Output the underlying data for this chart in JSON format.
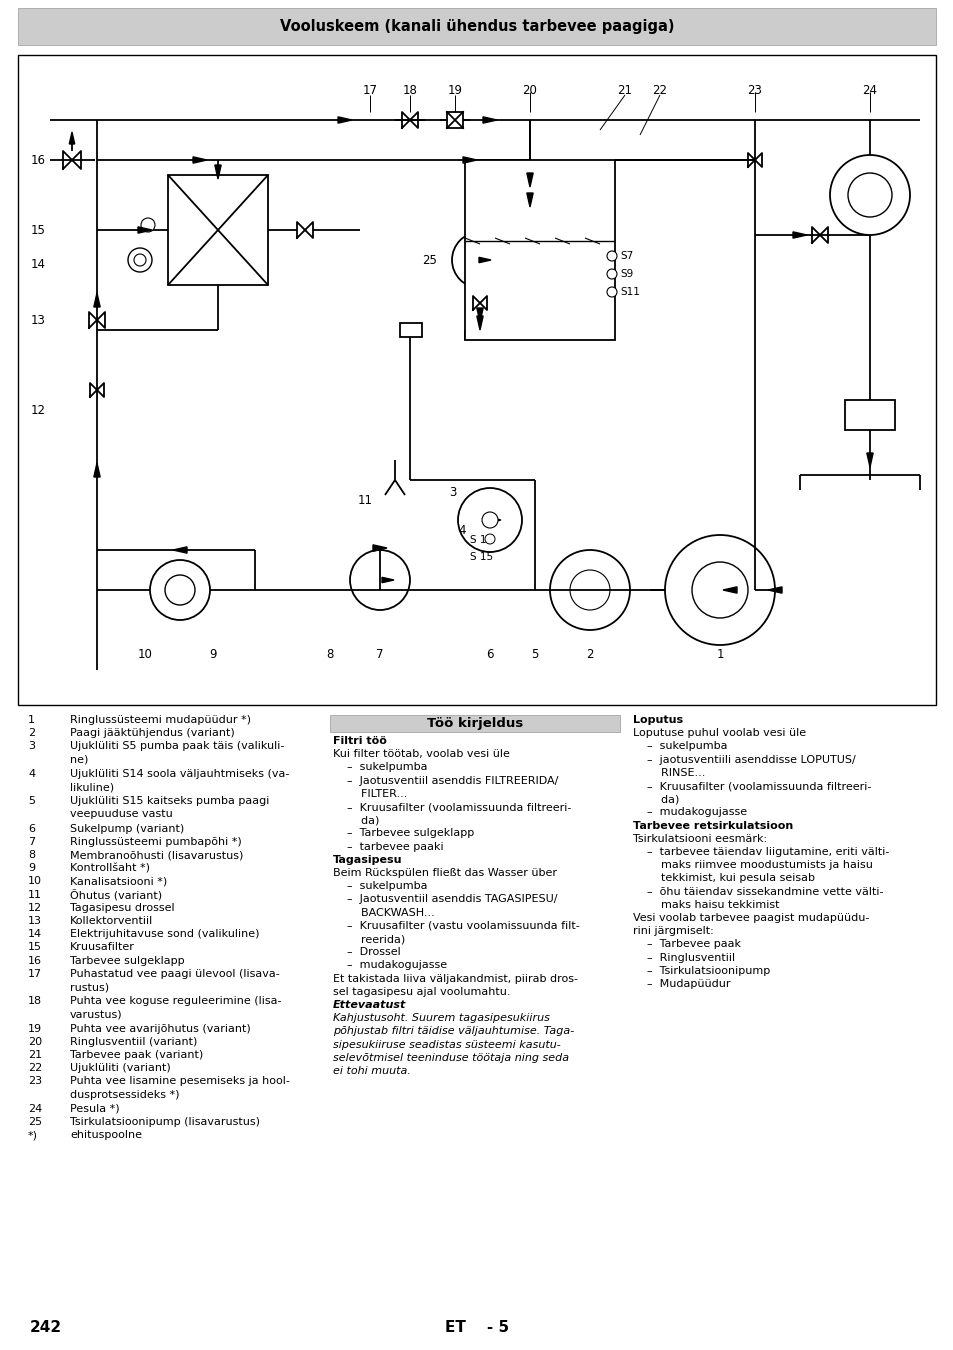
{
  "title": "Vooluskeem (kanali ühendus tarbevee paagiga)",
  "page_number": "242",
  "language_code": "ET    - 5",
  "bg_color": "#ffffff",
  "header_bg": "#cccccc",
  "left_items": [
    [
      "1",
      "Ringlussüsteemi mudapüüdur *)"
    ],
    [
      "2",
      "Paagi jääktühjendus (variant)"
    ],
    [
      "3",
      "Ujuklüliti S5 pumba paak täis (valikuli-\nne)"
    ],
    [
      "4",
      "Ujuklüliti S14 soola väljauhtmiseks (va-\nlikuline)"
    ],
    [
      "5",
      "Ujuklüliti S15 kaitseks pumba paagi\nveepuuduse vastu"
    ],
    [
      "6",
      "Sukelpump (variant)"
    ],
    [
      "7",
      "Ringlussüsteemi pumbapõhi *)"
    ],
    [
      "8",
      "Membranoõhusti (lisavarustus)"
    ],
    [
      "9",
      "Kontrollšaht *)"
    ],
    [
      "10",
      "Kanalisatsiooni *)"
    ],
    [
      "11",
      "Õhutus (variant)"
    ],
    [
      "12",
      "Tagasipesu drossel"
    ],
    [
      "13",
      "Kollektorventiil"
    ],
    [
      "14",
      "Elektrijuhitavuse sond (valikuline)"
    ],
    [
      "15",
      "Kruusafilter"
    ],
    [
      "16",
      "Tarbevee sulgeklapp"
    ],
    [
      "17",
      "Puhastatud vee paagi ülevool (lisava-\nrustus)"
    ],
    [
      "18",
      "Puhta vee koguse reguleerimine (lisa-\nvarustus)"
    ],
    [
      "19",
      "Puhta vee avarijõhutus (variant)"
    ],
    [
      "20",
      "Ringlusventiil (variant)"
    ],
    [
      "21",
      "Tarbevee paak (variant)"
    ],
    [
      "22",
      "Ujuklüliti (variant)"
    ],
    [
      "23",
      "Puhta vee lisamine pesemiseks ja hool-\ndusprotsessideks *)"
    ],
    [
      "24",
      "Pesula *)"
    ],
    [
      "25",
      "Tsirkulatsioonipump (lisavarustus)"
    ],
    [
      "*)",
      "ehituspoolne"
    ]
  ],
  "middle_header": "Töö kirjeldus",
  "middle_content": [
    {
      "type": "bold",
      "text": "Filtri töö"
    },
    {
      "type": "normal",
      "text": "Kui filter töötab, voolab vesi üle"
    },
    {
      "type": "bullet",
      "text": "sukelpumba"
    },
    {
      "type": "bullet",
      "text": "Jaotusventiil asenddis FILTREERIDA/\nFILTER..."
    },
    {
      "type": "bullet",
      "text": "Kruusafilter (voolamissuunda filtreeri-\nda)"
    },
    {
      "type": "bullet",
      "text": "Tarbevee sulgeklapp"
    },
    {
      "type": "bullet",
      "text": "tarbevee paaki"
    },
    {
      "type": "bold",
      "text": "Tagasipesu"
    },
    {
      "type": "normal",
      "text": "Beim Rückspülen fließt das Wasser über"
    },
    {
      "type": "bullet",
      "text": "sukelpumba"
    },
    {
      "type": "bullet",
      "text": "Jaotusventiil asenddis TAGASIPESU/\nBACKWASH..."
    },
    {
      "type": "bullet",
      "text": "Kruusafilter (vastu voolamissuunda filt-\nreerida)"
    },
    {
      "type": "bullet",
      "text": "Drossel"
    },
    {
      "type": "bullet",
      "text": "mudakogujasse"
    },
    {
      "type": "normal",
      "text": "Et takistada liiva väljakandmist, piirab dros-\nsel tagasipesu ajal voolumahtu."
    },
    {
      "type": "bold_italic",
      "text": "Ettevaatust"
    },
    {
      "type": "italic",
      "text": "Kahjustusoht. Suurem tagasipesukiirus\npõhjustab filtri täidise väljauhtumise. Taga-\nsipesukiiruse seadistas süsteemi kasutu-\nselevõtmisel teeninduse töötaja ning seda\nei tohi muuta."
    }
  ],
  "right_content": [
    {
      "type": "bold",
      "text": "Loputus"
    },
    {
      "type": "normal",
      "text": "Loputuse puhul voolab vesi üle"
    },
    {
      "type": "bullet",
      "text": "sukelpumba"
    },
    {
      "type": "bullet",
      "text": "jaotusventiili asenddisse LOPUTUS/\nRINSE..."
    },
    {
      "type": "bullet",
      "text": "Kruusafilter (voolamissuunda filtreeri-\nda)"
    },
    {
      "type": "bullet",
      "text": "mudakogujasse"
    },
    {
      "type": "bold",
      "text": "Tarbevee retsirkulatsioon"
    },
    {
      "type": "normal",
      "text": "Tsirkulatsiooni eesmärk:"
    },
    {
      "type": "bullet",
      "text": "tarbevee täiendav liigutamine, eriti välti-\nmaks riimvee moodustumists ja haisu\ntekkimist, kui pesula seisab"
    },
    {
      "type": "bullet",
      "text": "õhu täiendav sissekandmine vette välti-\nmaks haisu tekkimist"
    },
    {
      "type": "normal",
      "text": "Vesi voolab tarbevee paagist mudapüüdu-\nrini järgmiselt:"
    },
    {
      "type": "bullet",
      "text": "Tarbevee paak"
    },
    {
      "type": "bullet",
      "text": "Ringlusventiil"
    },
    {
      "type": "bullet",
      "text": "Tsirkulatsioonipump"
    },
    {
      "type": "bullet",
      "text": "Mudapüüdur"
    }
  ]
}
